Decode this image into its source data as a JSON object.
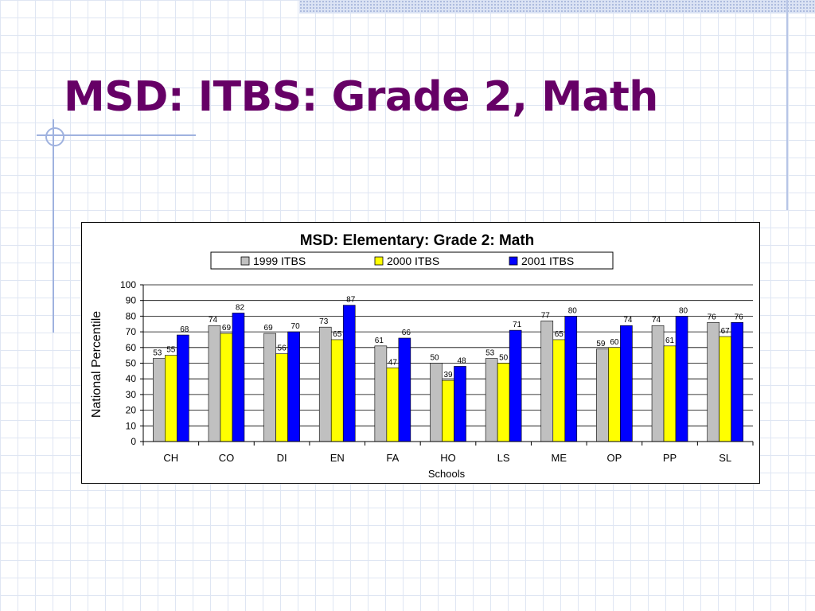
{
  "slide": {
    "title": "MSD: ITBS: Grade 2, Math"
  },
  "colors": {
    "title": "#660066",
    "series": [
      "#c0c0c0",
      "#ffff00",
      "#0000ff"
    ]
  },
  "chart_data": {
    "type": "bar",
    "title": "MSD: Elementary: Grade 2: Math",
    "xlabel": "Schools",
    "ylabel": "National Percentile",
    "ylim": [
      0,
      100
    ],
    "yticks": [
      0,
      10,
      20,
      30,
      40,
      50,
      60,
      70,
      80,
      90,
      100
    ],
    "grid": true,
    "legend": "top",
    "categories": [
      "CH",
      "CO",
      "DI",
      "EN",
      "FA",
      "HO",
      "LS",
      "ME",
      "OP",
      "PP",
      "SL"
    ],
    "series": [
      {
        "name": "1999 ITBS",
        "color": "#c0c0c0",
        "values": [
          53,
          74,
          69,
          73,
          61,
          50,
          53,
          77,
          59,
          74,
          76
        ]
      },
      {
        "name": "2000 ITBS",
        "color": "#ffff00",
        "values": [
          55,
          69,
          56,
          65,
          47,
          39,
          50,
          65,
          60,
          61,
          67
        ]
      },
      {
        "name": "2001 ITBS",
        "color": "#0000ff",
        "values": [
          68,
          82,
          70,
          87,
          66,
          48,
          71,
          80,
          74,
          80,
          76
        ]
      }
    ]
  }
}
